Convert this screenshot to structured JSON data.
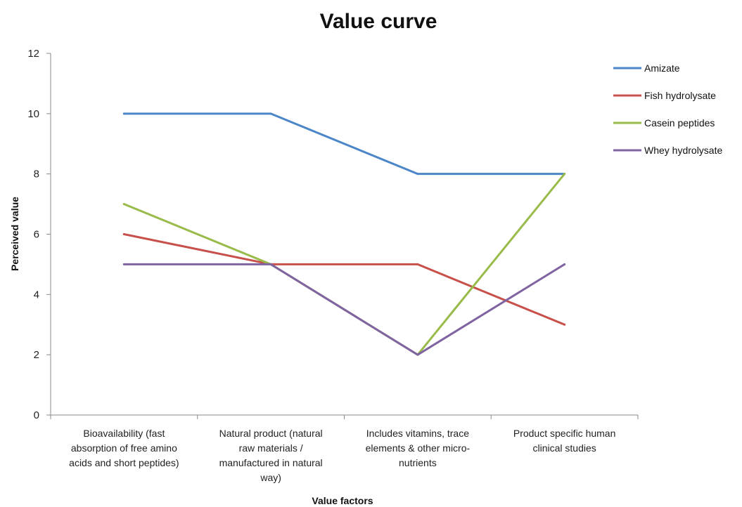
{
  "chart_data": {
    "type": "line",
    "title": "Value curve",
    "xlabel": "Value factors",
    "ylabel": "Perceived value",
    "ylim": [
      0,
      12
    ],
    "yticks": [
      "0",
      "2",
      "4",
      "6",
      "8",
      "10",
      "12"
    ],
    "grid": false,
    "legend_position": "right",
    "categories": [
      "Bioavailability (fast absorption of free amino acids and short peptides)",
      "Natural product (natural raw materials / manufactured in natural way)",
      "Includes vitamins, trace elements & other micro-nutrients",
      "Product specific human clinical studies"
    ],
    "category_lines": [
      [
        "Bioavailability (fast",
        "absorption of free amino",
        "acids and short peptides)"
      ],
      [
        "Natural product (natural",
        "raw materials /",
        "manufactured in natural",
        "way)"
      ],
      [
        "Includes vitamins, trace",
        "elements & other micro-",
        "nutrients"
      ],
      [
        "Product specific human",
        "clinical studies"
      ]
    ],
    "series": [
      {
        "name": "Amizate",
        "color": "#4a86c8",
        "values": [
          10,
          10,
          8,
          8
        ]
      },
      {
        "name": "Fish hydrolysate",
        "color": "#c8504b",
        "values": [
          6,
          5,
          5,
          3
        ]
      },
      {
        "name": "Casein peptides",
        "color": "#99bb4a",
        "values": [
          7,
          5,
          2,
          8
        ]
      },
      {
        "name": "Whey hydrolysate",
        "color": "#8064a2",
        "values": [
          5,
          5,
          2,
          5
        ]
      }
    ]
  }
}
